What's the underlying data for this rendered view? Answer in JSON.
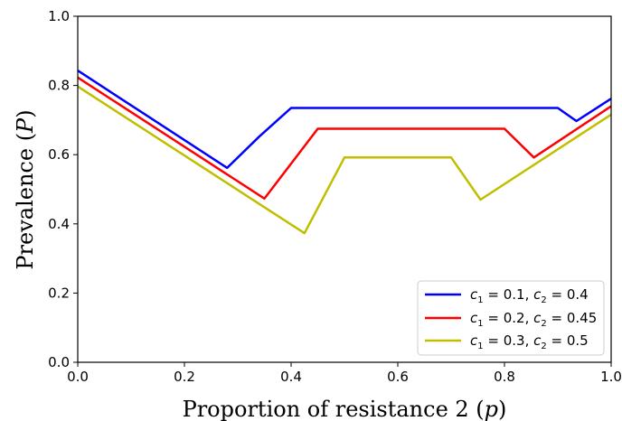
{
  "chart_data": {
    "type": "line",
    "xlabel": "Proportion of resistance 2 (p)",
    "ylabel": "Prevalence (P)",
    "xlim": [
      0,
      1
    ],
    "ylim": [
      0,
      1
    ],
    "xticks": [
      "0.0",
      "0.2",
      "0.4",
      "0.6",
      "0.8",
      "1.0"
    ],
    "yticks": [
      "0.0",
      "0.2",
      "0.4",
      "0.6",
      "0.8",
      "1.0"
    ],
    "grid": false,
    "legend_position": "bottom-right",
    "series": [
      {
        "name": "c1 = 0.1, c2 = 0.4",
        "color": "#0000ff",
        "points": [
          [
            0.0,
            0.843
          ],
          [
            0.28,
            0.562
          ],
          [
            0.34,
            0.652
          ],
          [
            0.4,
            0.735
          ],
          [
            0.9,
            0.735
          ],
          [
            0.935,
            0.697
          ],
          [
            1.0,
            0.762
          ]
        ]
      },
      {
        "name": "c1 = 0.2, c2 = 0.45",
        "color": "#ff0000",
        "points": [
          [
            0.0,
            0.823
          ],
          [
            0.35,
            0.473
          ],
          [
            0.45,
            0.675
          ],
          [
            0.8,
            0.675
          ],
          [
            0.855,
            0.592
          ],
          [
            1.0,
            0.74
          ]
        ]
      },
      {
        "name": "c1 = 0.3, c2 = 0.5",
        "color": "#bfbf00",
        "points": [
          [
            0.0,
            0.797
          ],
          [
            0.425,
            0.373
          ],
          [
            0.5,
            0.592
          ],
          [
            0.7,
            0.592
          ],
          [
            0.755,
            0.47
          ],
          [
            1.0,
            0.716
          ]
        ]
      }
    ]
  }
}
